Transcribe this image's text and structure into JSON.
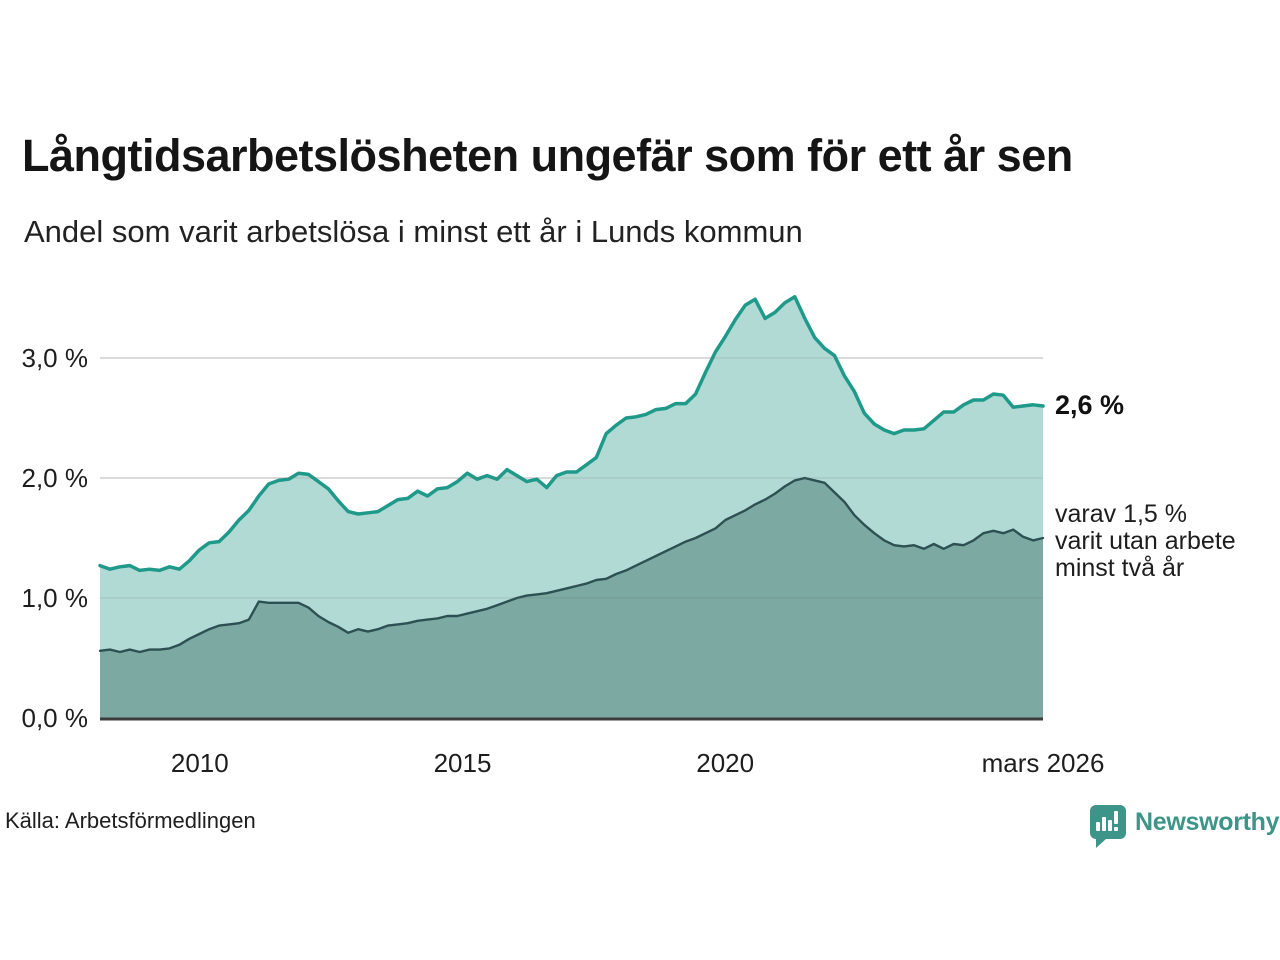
{
  "header": {
    "title": "Långtidsarbetslösheten ungefär som för ett år sen",
    "subtitle": "Andel som varit arbetslösa i minst ett år i Lunds kommun"
  },
  "footer": {
    "source": "Källa: Arbetsförmedlingen",
    "brand": "Newsworthy"
  },
  "annotations": {
    "end_value_label": "2,6 %",
    "varav_lines": [
      "varav 1,5 %",
      "varit utan arbete",
      "minst två år"
    ]
  },
  "colors": {
    "accent_teal": "#1f9a8a",
    "light_fill": "#b2dad4",
    "dark_line": "#2d5152",
    "dark_fill": "#7ca9a2",
    "grid": "#e0e0e0",
    "grid_overlay": "rgba(110,110,110,0.16)",
    "axis": "#3c3c3c",
    "text": "#1a1a1a",
    "brand_teal": "#3d9488"
  },
  "chart_data": {
    "type": "area",
    "title": "Långtidsarbetslösheten ungefär som för ett år sen",
    "subtitle": "Andel som varit arbetslösa i minst ett år i Lunds kommun",
    "xlabel": "",
    "ylabel": "",
    "x_start": 2008.1,
    "x_end": 2026.05,
    "ylim": [
      0,
      3.6
    ],
    "grid": "horizontal",
    "legend": "none",
    "x_ticks": [
      {
        "v": 2010,
        "label": "2010"
      },
      {
        "v": 2015,
        "label": "2015"
      },
      {
        "v": 2020,
        "label": "2020"
      },
      {
        "v": 2026.05,
        "label": "mars 2026"
      }
    ],
    "y_ticks": [
      {
        "v": 0,
        "label": "0,0 %"
      },
      {
        "v": 1,
        "label": "1,0 %"
      },
      {
        "v": 2,
        "label": "2,0 %"
      },
      {
        "v": 3,
        "label": "3,0 %"
      }
    ],
    "series": [
      {
        "name": "Andel som varit arbetslösa i minst ett år",
        "end_value": 2.6,
        "end_label": "2,6 %",
        "values": [
          1.27,
          1.24,
          1.26,
          1.27,
          1.23,
          1.24,
          1.23,
          1.26,
          1.24,
          1.31,
          1.4,
          1.46,
          1.47,
          1.55,
          1.65,
          1.73,
          1.85,
          1.95,
          1.98,
          1.99,
          2.04,
          2.03,
          1.97,
          1.91,
          1.81,
          1.72,
          1.7,
          1.71,
          1.72,
          1.77,
          1.82,
          1.83,
          1.89,
          1.85,
          1.91,
          1.92,
          1.97,
          2.04,
          1.99,
          2.02,
          1.99,
          2.07,
          2.02,
          1.97,
          1.99,
          1.92,
          2.02,
          2.05,
          2.05,
          2.11,
          2.17,
          2.37,
          2.44,
          2.5,
          2.51,
          2.53,
          2.57,
          2.58,
          2.62,
          2.62,
          2.7,
          2.88,
          3.05,
          3.18,
          3.32,
          3.44,
          3.49,
          3.33,
          3.38,
          3.46,
          3.51,
          3.33,
          3.17,
          3.08,
          3.02,
          2.85,
          2.72,
          2.54,
          2.45,
          2.4,
          2.37,
          2.4,
          2.4,
          2.41,
          2.48,
          2.55,
          2.55,
          2.61,
          2.65,
          2.65,
          2.7,
          2.69,
          2.59,
          2.6,
          2.61,
          2.6
        ]
      },
      {
        "name": "varav utan arbete minst två år",
        "end_value": 1.5,
        "end_label": "varav 1,5 % varit utan arbete minst två år",
        "values": [
          0.56,
          0.57,
          0.55,
          0.57,
          0.55,
          0.57,
          0.57,
          0.58,
          0.61,
          0.66,
          0.7,
          0.74,
          0.77,
          0.78,
          0.79,
          0.82,
          0.97,
          0.96,
          0.96,
          0.96,
          0.96,
          0.92,
          0.85,
          0.8,
          0.76,
          0.71,
          0.74,
          0.72,
          0.74,
          0.77,
          0.78,
          0.79,
          0.81,
          0.82,
          0.83,
          0.85,
          0.85,
          0.87,
          0.89,
          0.91,
          0.94,
          0.97,
          1.0,
          1.02,
          1.03,
          1.04,
          1.06,
          1.08,
          1.1,
          1.12,
          1.15,
          1.16,
          1.2,
          1.23,
          1.27,
          1.31,
          1.35,
          1.39,
          1.43,
          1.47,
          1.5,
          1.54,
          1.58,
          1.65,
          1.69,
          1.73,
          1.78,
          1.82,
          1.87,
          1.93,
          1.98,
          2.0,
          1.98,
          1.96,
          1.88,
          1.8,
          1.69,
          1.61,
          1.54,
          1.48,
          1.44,
          1.43,
          1.44,
          1.41,
          1.45,
          1.41,
          1.45,
          1.44,
          1.48,
          1.54,
          1.56,
          1.54,
          1.57,
          1.51,
          1.48,
          1.5
        ]
      }
    ]
  }
}
